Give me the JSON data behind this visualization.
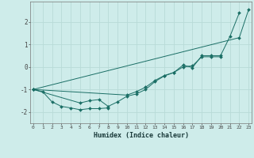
{
  "title": "",
  "xlabel": "Humidex (Indice chaleur)",
  "background_color": "#ceecea",
  "grid_color": "#b8dbd8",
  "line_color": "#1a6e65",
  "x_values": [
    0,
    1,
    2,
    3,
    4,
    5,
    6,
    7,
    8,
    9,
    10,
    11,
    12,
    13,
    14,
    15,
    16,
    17,
    18,
    19,
    20,
    21,
    22,
    23
  ],
  "series1": [
    -1.0,
    -1.1,
    -1.55,
    -1.75,
    -1.82,
    -1.9,
    -1.85,
    -1.85,
    -1.82,
    null,
    null,
    null,
    null,
    null,
    null,
    null,
    null,
    null,
    null,
    null,
    null,
    null,
    null,
    null
  ],
  "series2": [
    -1.0,
    null,
    null,
    null,
    null,
    -1.6,
    -1.5,
    -1.45,
    -1.75,
    -1.55,
    -1.3,
    -1.2,
    -1.0,
    -0.65,
    -0.4,
    -0.25,
    0.0,
    0.05,
    0.45,
    0.45,
    0.45,
    null,
    null,
    null
  ],
  "series3": [
    -1.0,
    null,
    null,
    null,
    null,
    null,
    null,
    null,
    null,
    null,
    -1.25,
    -1.1,
    -0.9,
    -0.6,
    -0.38,
    -0.25,
    0.08,
    -0.03,
    0.5,
    0.5,
    0.5,
    1.35,
    2.4,
    null
  ],
  "series4": [
    -1.0,
    null,
    null,
    null,
    null,
    null,
    null,
    null,
    null,
    null,
    null,
    null,
    null,
    null,
    null,
    null,
    null,
    null,
    null,
    null,
    null,
    null,
    1.3,
    2.55
  ],
  "ylim": [
    -2.5,
    2.9
  ],
  "xlim": [
    -0.3,
    23.3
  ],
  "yticks": [
    -2,
    -1,
    0,
    1,
    2
  ],
  "xticks": [
    0,
    1,
    2,
    3,
    4,
    5,
    6,
    7,
    8,
    9,
    10,
    11,
    12,
    13,
    14,
    15,
    16,
    17,
    18,
    19,
    20,
    21,
    22,
    23
  ]
}
